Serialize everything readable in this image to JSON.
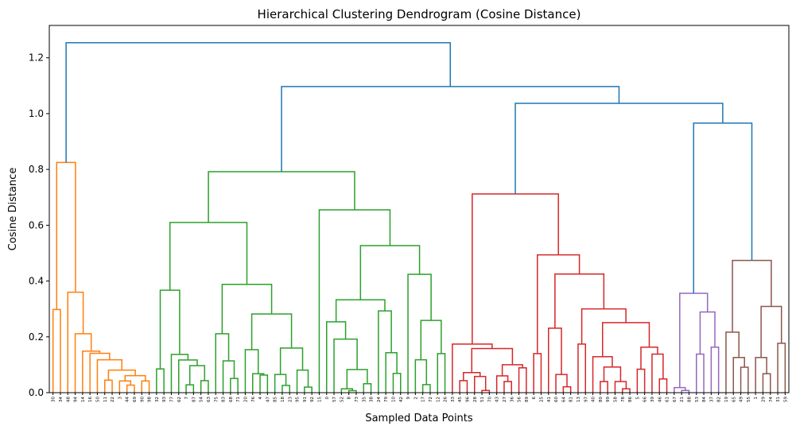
{
  "chart_data": {
    "type": "dendrogram",
    "title": "Hierarchical Clustering Dendrogram (Cosine Distance)",
    "xlabel": "Sampled Data Points",
    "ylabel": "Cosine Distance",
    "ylim": [
      0,
      1.316
    ],
    "y_ticks": [
      "0.0",
      "0.2",
      "0.4",
      "0.6",
      "0.8",
      "1.0",
      "1.2"
    ],
    "grid": false,
    "above_threshold_color": "#1f77b4",
    "cluster_colors": [
      "#ff7f0e",
      "#2ca02c",
      "#d62728",
      "#9467bd",
      "#8c564b"
    ],
    "leaves": [
      "30",
      "34",
      "48",
      "94",
      "14",
      "16",
      "50",
      "11",
      "22",
      "3",
      "44",
      "69",
      "90",
      "98",
      "32",
      "93",
      "77",
      "62",
      "7",
      "87",
      "54",
      "63",
      "75",
      "83",
      "68",
      "71",
      "20",
      "76",
      "4",
      "47",
      "85",
      "18",
      "23",
      "95",
      "91",
      "92",
      "15",
      "0",
      "57",
      "52",
      "8",
      "73",
      "35",
      "38",
      "24",
      "79",
      "10",
      "42",
      "9",
      "2",
      "17",
      "72",
      "12",
      "26",
      "33",
      "45",
      "96",
      "28",
      "51",
      "70",
      "43",
      "27",
      "36",
      "56",
      "89",
      "6",
      "25",
      "41",
      "60",
      "64",
      "81",
      "13",
      "97",
      "40",
      "80",
      "99",
      "58",
      "78",
      "86",
      "5",
      "66",
      "39",
      "46",
      "61",
      "67",
      "21",
      "88",
      "53",
      "84",
      "37",
      "82",
      "19",
      "65",
      "49",
      "55",
      "1",
      "29",
      "74",
      "31",
      "59"
    ],
    "tree_format": "[merge_distance, left, right, cluster_color?]",
    "tree": [
      1.254,
      [
        0.825,
        [
          0.298,
          "30",
          "34"
        ],
        [
          0.36,
          "48",
          [
            0.211,
            "94",
            [
              0.149,
              "14",
              [
                0.141,
                "16",
                [
                  0.118,
                  "50",
                  [
                    0.081,
                    [
                      0.045,
                      "11",
                      "22"
                    ],
                    [
                      0.061,
                      [
                        0.042,
                        "3",
                        [
                          0.027,
                          "44",
                          "69"
                        ]
                      ],
                      [
                        0.042,
                        "90",
                        "98"
                      ]
                    ]
                  ]
                ]
              ]
            ]
          ]
        ],
        "#ff7f0e"
      ],
      [
        1.097,
        [
          0.792,
          [
            0.61,
            [
              0.367,
              [
                0.085,
                "32",
                "93"
              ],
              [
                0.137,
                "77",
                [
                  0.117,
                  "62",
                  [
                    0.097,
                    [
                      0.028,
                      "7",
                      "87"
                    ],
                    [
                      0.043,
                      "54",
                      "63"
                    ]
                  ]
                ]
              ]
            ],
            [
              0.388,
              [
                0.211,
                "75",
                [
                  0.114,
                  "83",
                  [
                    0.051,
                    "68",
                    "71"
                  ]
                ]
              ],
              [
                0.282,
                [
                  0.154,
                  "20",
                  [
                    0.068,
                    "76",
                    [
                      0.063,
                      "4",
                      "47"
                    ]
                  ]
                ],
                [
                  0.16,
                  [
                    0.065,
                    "85",
                    [
                      0.026,
                      "18",
                      "23"
                    ]
                  ],
                  [
                    0.081,
                    "95",
                    [
                      0.02,
                      "91",
                      "92"
                    ]
                  ]
                ]
              ]
            ]
          ],
          [
            0.655,
            "15",
            [
              0.527,
              [
                0.333,
                [
                  0.254,
                  "0",
                  [
                    0.192,
                    "57",
                    [
                      0.083,
                      [
                        0.014,
                        "52",
                        [
                          0.007,
                          "8",
                          "73"
                        ]
                      ],
                      [
                        0.032,
                        "35",
                        "38"
                      ]
                    ]
                  ]
                ],
                [
                  0.293,
                  "24",
                  [
                    0.143,
                    "79",
                    [
                      0.069,
                      "10",
                      "42"
                    ]
                  ]
                ]
              ],
              [
                0.424,
                "9",
                [
                  0.259,
                  [
                    0.118,
                    "2",
                    [
                      0.029,
                      "17",
                      "72"
                    ]
                  ],
                  [
                    0.14,
                    "12",
                    "26"
                  ]
                ]
              ]
            ]
          ],
          "#2ca02c"
        ],
        [
          1.037,
          [
            0.712,
            [
              0.174,
              "33",
              [
                0.158,
                [
                  0.072,
                  [
                    0.043,
                    "45",
                    "96"
                  ],
                  [
                    0.058,
                    "28",
                    [
                      0.008,
                      "51",
                      "70"
                    ]
                  ]
                ],
                [
                  0.1,
                  [
                    0.06,
                    "43",
                    [
                      0.04,
                      "27",
                      "36"
                    ]
                  ],
                  [
                    0.089,
                    "56",
                    "89"
                  ]
                ]
              ]
            ],
            [
              0.494,
              [
                0.14,
                "6",
                "25"
              ],
              [
                0.425,
                [
                  0.231,
                  "41",
                  [
                    0.065,
                    "60",
                    [
                      0.021,
                      "64",
                      "81"
                    ]
                  ]
                ],
                [
                  0.3,
                  [
                    0.174,
                    "13",
                    "97"
                  ],
                  [
                    0.251,
                    [
                      0.129,
                      "40",
                      [
                        0.092,
                        [
                          0.04,
                          "80",
                          "99"
                        ],
                        [
                          0.04,
                          "58",
                          [
                            0.014,
                            "78",
                            "86"
                          ]
                        ]
                      ]
                    ],
                    [
                      0.163,
                      [
                        0.084,
                        "5",
                        "66"
                      ],
                      [
                        0.138,
                        "39",
                        [
                          0.049,
                          "46",
                          "61"
                        ]
                      ]
                    ]
                  ]
                ]
              ]
            ],
            "#d62728"
          ],
          [
            0.966,
            [
              0.356,
              [
                0.018,
                "67",
                [
                  0.008,
                  "21",
                  "88"
                ]
              ],
              [
                0.289,
                [
                  0.138,
                  "53",
                  "84"
                ],
                [
                  0.163,
                  "37",
                  "82"
                ]
              ],
              "#9467bd"
            ],
            [
              0.474,
              [
                0.217,
                "19",
                [
                  0.126,
                  "65",
                  [
                    0.091,
                    "49",
                    "55"
                  ]
                ]
              ],
              [
                0.309,
                [
                  0.126,
                  "1",
                  [
                    0.068,
                    "29",
                    "74"
                  ]
                ],
                [
                  0.177,
                  "31",
                  "59"
                ]
              ],
              "#8c564b"
            ]
          ]
        ]
      ]
    ]
  }
}
